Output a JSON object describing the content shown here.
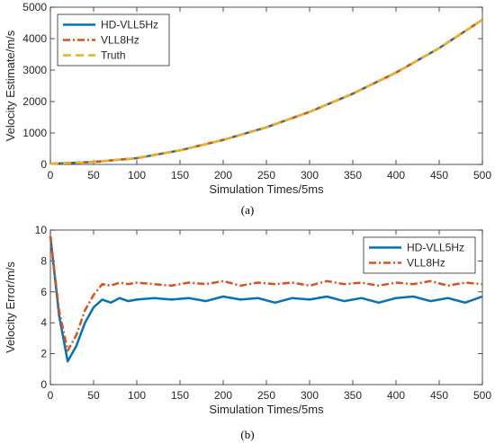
{
  "colors": {
    "blue": "#0072BD",
    "orange": "#D95319",
    "yellow": "#EDB120",
    "axis": "#262626"
  },
  "chart_data": [
    {
      "type": "line",
      "caption": "(a)",
      "xlabel": "Simulation Times/5ms",
      "ylabel": "Velocity Estimate/m/s",
      "xlim": [
        0,
        500
      ],
      "ylim": [
        0,
        5000
      ],
      "x_ticks": [
        "0",
        "50",
        "100",
        "150",
        "200",
        "250",
        "300",
        "350",
        "400",
        "450",
        "500"
      ],
      "y_ticks": [
        "0",
        "1000",
        "2000",
        "3000",
        "4000",
        "5000"
      ],
      "grid": false,
      "legend_position": "top-left",
      "x": [
        0,
        50,
        100,
        150,
        200,
        250,
        300,
        350,
        400,
        450,
        500
      ],
      "series": [
        {
          "name": "HD-VLL5Hz",
          "style": "solid",
          "color": "#0072BD",
          "values": [
            20,
            80,
            200,
            450,
            780,
            1180,
            1670,
            2250,
            2920,
            3700,
            4600
          ]
        },
        {
          "name": "VLL8Hz",
          "style": "dashdot",
          "color": "#D95319",
          "values": [
            20,
            80,
            200,
            450,
            780,
            1180,
            1670,
            2250,
            2920,
            3700,
            4600
          ]
        },
        {
          "name": "Truth",
          "style": "dashed",
          "color": "#EDB120",
          "values": [
            20,
            80,
            200,
            450,
            780,
            1180,
            1670,
            2250,
            2920,
            3700,
            4600
          ]
        }
      ]
    },
    {
      "type": "line",
      "caption": "(b)",
      "xlabel": "Simulation Times/5ms",
      "ylabel": "Velocity Error/m/s",
      "xlim": [
        0,
        500
      ],
      "ylim": [
        0,
        10
      ],
      "x_ticks": [
        "0",
        "50",
        "100",
        "150",
        "200",
        "250",
        "300",
        "350",
        "400",
        "450",
        "500"
      ],
      "y_ticks": [
        "0",
        "2",
        "4",
        "6",
        "8",
        "10"
      ],
      "grid": false,
      "legend_position": "top-right",
      "x": [
        0,
        10,
        20,
        30,
        40,
        50,
        60,
        70,
        80,
        90,
        100,
        120,
        140,
        160,
        180,
        200,
        220,
        240,
        260,
        280,
        300,
        320,
        340,
        360,
        380,
        400,
        420,
        440,
        460,
        480,
        500
      ],
      "series": [
        {
          "name": "HD-VLL5Hz",
          "style": "solid",
          "color": "#0072BD",
          "values": [
            9.6,
            4.5,
            1.5,
            2.5,
            4.0,
            5.0,
            5.5,
            5.3,
            5.6,
            5.4,
            5.5,
            5.6,
            5.5,
            5.6,
            5.4,
            5.7,
            5.5,
            5.6,
            5.3,
            5.6,
            5.5,
            5.7,
            5.4,
            5.6,
            5.3,
            5.6,
            5.7,
            5.4,
            5.6,
            5.3,
            5.7
          ]
        },
        {
          "name": "VLL8Hz",
          "style": "dashdot",
          "color": "#D95319",
          "values": [
            9.6,
            4.8,
            2.2,
            3.2,
            4.8,
            5.8,
            6.5,
            6.4,
            6.6,
            6.5,
            6.6,
            6.5,
            6.4,
            6.6,
            6.5,
            6.7,
            6.4,
            6.6,
            6.5,
            6.6,
            6.4,
            6.7,
            6.5,
            6.6,
            6.4,
            6.6,
            6.5,
            6.7,
            6.4,
            6.6,
            6.5
          ]
        }
      ]
    }
  ]
}
